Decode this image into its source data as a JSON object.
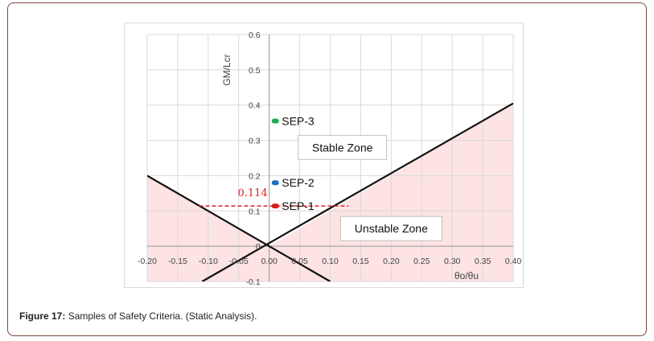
{
  "chart_data": {
    "type": "scatter",
    "xlabel": "θo/θu",
    "ylabel": "GM/Lcr",
    "xlim": [
      -0.2,
      0.4
    ],
    "ylim": [
      -0.1,
      0.6
    ],
    "x_ticks": [
      "-0.20",
      "-0.15",
      "-0.10",
      "-0.05",
      "0.00",
      "0.05",
      "0.10",
      "0.15",
      "0.20",
      "0.25",
      "0.30",
      "0.35",
      "0.40"
    ],
    "y_ticks": [
      "-0.1",
      "0",
      "0.1",
      "0.2",
      "0.3",
      "0.4",
      "0.5",
      "0.6"
    ],
    "grid": true,
    "series": [
      {
        "name": "SEP-1",
        "x": 0.01,
        "y": 0.114,
        "color": "#d62020"
      },
      {
        "name": "SEP-2",
        "x": 0.01,
        "y": 0.18,
        "color": "#1f6fbf"
      },
      {
        "name": "SEP-3",
        "x": 0.01,
        "y": 0.355,
        "color": "#1faa55"
      }
    ],
    "boundary_lines": [
      {
        "points": [
          [
            -0.2,
            0.2
          ],
          [
            0.1,
            -0.1
          ]
        ],
        "color": "#111111"
      },
      {
        "points": [
          [
            -0.11,
            -0.1
          ],
          [
            0.4,
            0.405
          ]
        ],
        "color": "#111111"
      }
    ],
    "reference_line": {
      "label": "0.114",
      "y": 0.114,
      "x_range": [
        -0.115,
        0.13
      ],
      "color": "#e02020"
    },
    "zones": [
      {
        "label": "Stable Zone",
        "x": 0.12,
        "y": 0.28,
        "fill": ""
      },
      {
        "label": "Unstable Zone",
        "x": 0.2,
        "y": 0.05,
        "fill": "#fde3e3"
      }
    ]
  },
  "caption": {
    "label": "Figure 17:",
    "text": " Samples of Safety Criteria. (Static Analysis)."
  }
}
